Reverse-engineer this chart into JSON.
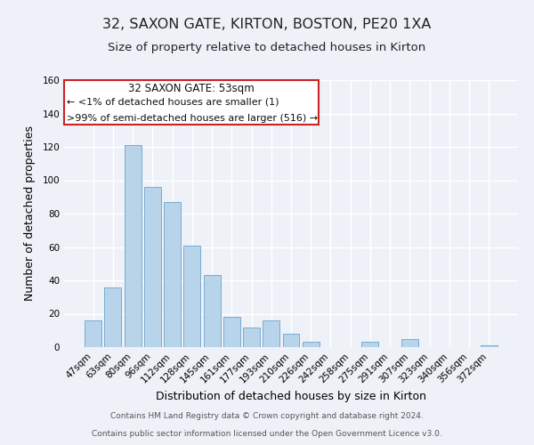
{
  "title": "32, SAXON GATE, KIRTON, BOSTON, PE20 1XA",
  "subtitle": "Size of property relative to detached houses in Kirton",
  "xlabel": "Distribution of detached houses by size in Kirton",
  "ylabel": "Number of detached properties",
  "bar_color": "#b8d4ea",
  "bar_edge_color": "#7aaad0",
  "categories": [
    "47sqm",
    "63sqm",
    "80sqm",
    "96sqm",
    "112sqm",
    "128sqm",
    "145sqm",
    "161sqm",
    "177sqm",
    "193sqm",
    "210sqm",
    "226sqm",
    "242sqm",
    "258sqm",
    "275sqm",
    "291sqm",
    "307sqm",
    "323sqm",
    "340sqm",
    "356sqm",
    "372sqm"
  ],
  "values": [
    16,
    36,
    121,
    96,
    87,
    61,
    43,
    18,
    12,
    16,
    8,
    3,
    0,
    0,
    3,
    0,
    5,
    0,
    0,
    0,
    1
  ],
  "ylim": [
    0,
    160
  ],
  "yticks": [
    0,
    20,
    40,
    60,
    80,
    100,
    120,
    140,
    160
  ],
  "annotation_line1": "32 SAXON GATE: 53sqm",
  "annotation_line2": "← <1% of detached houses are smaller (1)",
  "annotation_line3": ">99% of semi-detached houses are larger (516) →",
  "box_edge_color": "#cc2222",
  "footer_line1": "Contains HM Land Registry data © Crown copyright and database right 2024.",
  "footer_line2": "Contains public sector information licensed under the Open Government Licence v3.0.",
  "background_color": "#eef2f8",
  "grid_color": "#ffffff",
  "title_fontsize": 11.5,
  "subtitle_fontsize": 9.5,
  "axis_label_fontsize": 9,
  "tick_fontsize": 7.5,
  "footer_fontsize": 6.5
}
